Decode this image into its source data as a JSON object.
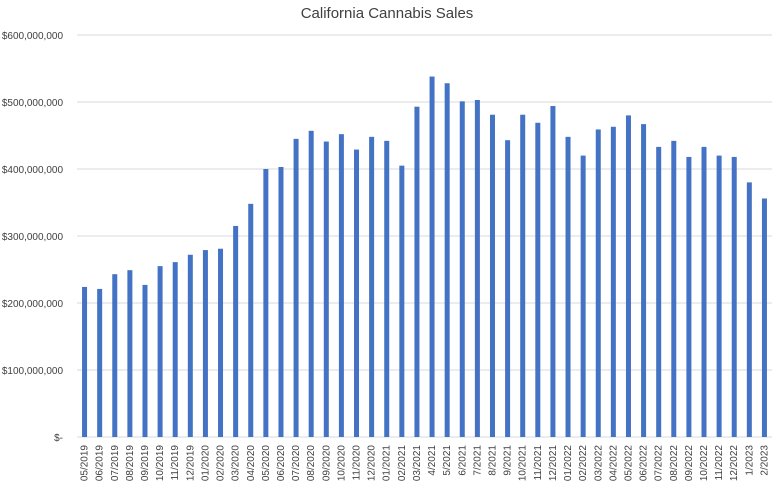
{
  "chart_data": {
    "type": "bar",
    "title": "California Cannabis Sales",
    "xlabel": "",
    "ylabel": "",
    "ylim": [
      0,
      600000000
    ],
    "y_ticks": [
      0,
      100000000,
      200000000,
      300000000,
      400000000,
      500000000,
      600000000
    ],
    "y_tick_labels": [
      "$-",
      "$100,000,000",
      "$200,000,000",
      "$300,000,000",
      "$400,000,000",
      "$500,000,000",
      "$600,000,000"
    ],
    "grid": true,
    "bar_color": "#4472C4",
    "categories": [
      "05/2019",
      "06/2019",
      "07/2019",
      "08/2019",
      "09/2019",
      "10/2019",
      "11/2019",
      "12/2019",
      "01/2020",
      "02/2020",
      "03/2020",
      "04/2020",
      "05/2020",
      "06/2020",
      "07/2020",
      "08/2020",
      "09/2020",
      "10/2020",
      "11/2020",
      "12/2020",
      "01/2021",
      "02/2021",
      "03/2021",
      "4/2021",
      "5/2021",
      "6/2021",
      "7/2021",
      "8/2021",
      "9/2021",
      "10/2021",
      "11/2021",
      "12/2021",
      "01/2022",
      "02/2022",
      "03/2022",
      "04/2022",
      "05/2022",
      "06/2022",
      "07/2022",
      "08/2022",
      "09/2022",
      "10/2022",
      "11/2022",
      "12/2022",
      "1/2023",
      "2/2023"
    ],
    "values": [
      224000000,
      221000000,
      243000000,
      249000000,
      227000000,
      255000000,
      261000000,
      272000000,
      279000000,
      281000000,
      315000000,
      348000000,
      400000000,
      403000000,
      445000000,
      457000000,
      441000000,
      452000000,
      429000000,
      448000000,
      442000000,
      405000000,
      493000000,
      538000000,
      528000000,
      501000000,
      503000000,
      481000000,
      443000000,
      481000000,
      469000000,
      494000000,
      448000000,
      420000000,
      459000000,
      463000000,
      480000000,
      467000000,
      433000000,
      442000000,
      418000000,
      433000000,
      420000000,
      418000000,
      380000000,
      356000000
    ]
  }
}
